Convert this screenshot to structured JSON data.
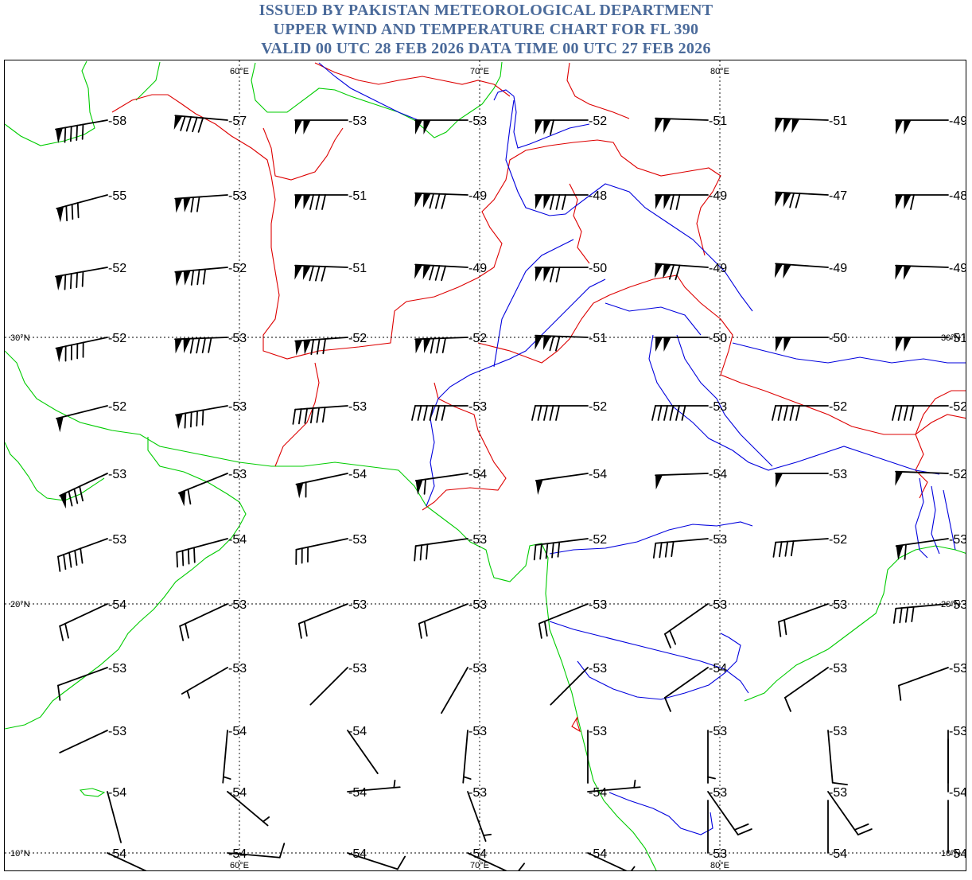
{
  "header": {
    "line1": "ISSUED BY PAKISTAN METEOROLOGICAL DEPARTMENT",
    "line2": "UPPER WIND AND TEMPERATURE CHART FOR FL 390",
    "line3": "VALID 00 UTC 28 FEB 2026 DATA TIME 00 UTC 27 FEB 2026"
  },
  "colors": {
    "title": "#4a6a9a",
    "coast": "#00cc00",
    "border": "#dd0000",
    "river": "#0000dd",
    "barb": "#000000",
    "grid": "#000000"
  },
  "grid": {
    "lon_labels": [
      "60°E",
      "70°E",
      "80°E"
    ],
    "lat_labels": [
      "30°N",
      "20°N",
      "10°N"
    ]
  },
  "stations": [
    {
      "temp": "-58",
      "barb": [
        1,
        0,
        4,
        0
      ],
      "dir": 260
    },
    {
      "temp": "-57",
      "barb": [
        1,
        0,
        4,
        0
      ],
      "dir": 275
    },
    {
      "temp": "-53",
      "barb": [
        2,
        0,
        0,
        0
      ],
      "dir": 270
    },
    {
      "temp": "-53",
      "barb": [
        2,
        0,
        0,
        0
      ],
      "dir": 270
    },
    {
      "temp": "-52",
      "barb": [
        2,
        0,
        1,
        0
      ],
      "dir": 270
    },
    {
      "temp": "-51",
      "barb": [
        2,
        0,
        0,
        0
      ],
      "dir": 272
    },
    {
      "temp": "-51",
      "barb": [
        3,
        0,
        0,
        0
      ],
      "dir": 272
    },
    {
      "temp": "-49",
      "barb": [
        2,
        0,
        0,
        0
      ],
      "dir": 270
    },
    {
      "temp": "-55",
      "barb": [
        1,
        0,
        3,
        0
      ],
      "dir": 255
    },
    {
      "temp": "-53",
      "barb": [
        2,
        0,
        2,
        0
      ],
      "dir": 266
    },
    {
      "temp": "-51",
      "barb": [
        2,
        0,
        3,
        0
      ],
      "dir": 270
    },
    {
      "temp": "-49",
      "barb": [
        2,
        0,
        3,
        0
      ],
      "dir": 272
    },
    {
      "temp": "-48",
      "barb": [
        2,
        0,
        3,
        0
      ],
      "dir": 270
    },
    {
      "temp": "-49",
      "barb": [
        2,
        0,
        2,
        0
      ],
      "dir": 270
    },
    {
      "temp": "-47",
      "barb": [
        2,
        0,
        2,
        0
      ],
      "dir": 273
    },
    {
      "temp": "-48",
      "barb": [
        2,
        0,
        1,
        0
      ],
      "dir": 270
    },
    {
      "temp": "-52",
      "barb": [
        1,
        0,
        4,
        0
      ],
      "dir": 260
    },
    {
      "temp": "-52",
      "barb": [
        2,
        0,
        3,
        0
      ],
      "dir": 265
    },
    {
      "temp": "-51",
      "barb": [
        2,
        0,
        3,
        0
      ],
      "dir": 272
    },
    {
      "temp": "-49",
      "barb": [
        2,
        0,
        3,
        0
      ],
      "dir": 273
    },
    {
      "temp": "-50",
      "barb": [
        2,
        0,
        2,
        0
      ],
      "dir": 270
    },
    {
      "temp": "-49",
      "barb": [
        2,
        0,
        2,
        0
      ],
      "dir": 274
    },
    {
      "temp": "-49",
      "barb": [
        2,
        0,
        0,
        0
      ],
      "dir": 274
    },
    {
      "temp": "-49",
      "barb": [
        2,
        0,
        0,
        0
      ],
      "dir": 272
    },
    {
      "temp": "-52",
      "barb": [
        1,
        0,
        4,
        0
      ],
      "dir": 258
    },
    {
      "temp": "-53",
      "barb": [
        2,
        0,
        4,
        0
      ],
      "dir": 268
    },
    {
      "temp": "-52",
      "barb": [
        2,
        0,
        3,
        0
      ],
      "dir": 266
    },
    {
      "temp": "-52",
      "barb": [
        2,
        0,
        3,
        0
      ],
      "dir": 268
    },
    {
      "temp": "-51",
      "barb": [
        2,
        0,
        2,
        0
      ],
      "dir": 272
    },
    {
      "temp": "-50",
      "barb": [
        2,
        0,
        0,
        0
      ],
      "dir": 270
    },
    {
      "temp": "-50",
      "barb": [
        2,
        0,
        0,
        0
      ],
      "dir": 270
    },
    {
      "temp": "-51",
      "barb": [
        2,
        0,
        0,
        0
      ],
      "dir": 270
    },
    {
      "temp": "-52",
      "barb": [
        1,
        0,
        0,
        0
      ],
      "dir": 256
    },
    {
      "temp": "-53",
      "barb": [
        1,
        0,
        4,
        0
      ],
      "dir": 260
    },
    {
      "temp": "-53",
      "barb": [
        0,
        0,
        6,
        0
      ],
      "dir": 266
    },
    {
      "temp": "-53",
      "barb": [
        0,
        0,
        6,
        0
      ],
      "dir": 270
    },
    {
      "temp": "-52",
      "barb": [
        0,
        0,
        5,
        0
      ],
      "dir": 270
    },
    {
      "temp": "-53",
      "barb": [
        0,
        0,
        6,
        0
      ],
      "dir": 270
    },
    {
      "temp": "-52",
      "barb": [
        0,
        0,
        5,
        0
      ],
      "dir": 270
    },
    {
      "temp": "-52",
      "barb": [
        0,
        0,
        4,
        0
      ],
      "dir": 270
    },
    {
      "temp": "-53",
      "barb": [
        1,
        0,
        3,
        0
      ],
      "dir": 245
    },
    {
      "temp": "-53",
      "barb": [
        1,
        0,
        1,
        0
      ],
      "dir": 248
    },
    {
      "temp": "-54",
      "barb": [
        1,
        0,
        1,
        0
      ],
      "dir": 258
    },
    {
      "temp": "-54",
      "barb": [
        1,
        0,
        1,
        0
      ],
      "dir": 262
    },
    {
      "temp": "-54",
      "barb": [
        1,
        0,
        0,
        0
      ],
      "dir": 262
    },
    {
      "temp": "-54",
      "barb": [
        1,
        0,
        0,
        0
      ],
      "dir": 268
    },
    {
      "temp": "-53",
      "barb": [
        1,
        0,
        0,
        0
      ],
      "dir": 270
    },
    {
      "temp": "-52",
      "barb": [
        1,
        0,
        0,
        0
      ],
      "dir": 272
    },
    {
      "temp": "-53",
      "barb": [
        0,
        0,
        5,
        0
      ],
      "dir": 250
    },
    {
      "temp": "-54",
      "barb": [
        0,
        0,
        4,
        0
      ],
      "dir": 255
    },
    {
      "temp": "-53",
      "barb": [
        0,
        0,
        3,
        0
      ],
      "dir": 258
    },
    {
      "temp": "-53",
      "barb": [
        0,
        0,
        3,
        0
      ],
      "dir": 262
    },
    {
      "temp": "-52",
      "barb": [
        0,
        0,
        5,
        0
      ],
      "dir": 263
    },
    {
      "temp": "-53",
      "barb": [
        0,
        0,
        4,
        0
      ],
      "dir": 265
    },
    {
      "temp": "-52",
      "barb": [
        0,
        0,
        4,
        0
      ],
      "dir": 266
    },
    {
      "temp": "-53",
      "barb": [
        1,
        0,
        1,
        0
      ],
      "dir": 262
    },
    {
      "temp": "-54",
      "barb": [
        0,
        0,
        2,
        0
      ],
      "dir": 245
    },
    {
      "temp": "-53",
      "barb": [
        0,
        0,
        2,
        0
      ],
      "dir": 245
    },
    {
      "temp": "-53",
      "barb": [
        0,
        0,
        2,
        0
      ],
      "dir": 248
    },
    {
      "temp": "-53",
      "barb": [
        0,
        0,
        2,
        0
      ],
      "dir": 248
    },
    {
      "temp": "-53",
      "barb": [
        0,
        0,
        2,
        0
      ],
      "dir": 248
    },
    {
      "temp": "-53",
      "barb": [
        0,
        0,
        2,
        0
      ],
      "dir": 235
    },
    {
      "temp": "-53",
      "barb": [
        0,
        0,
        2,
        0
      ],
      "dir": 250
    },
    {
      "temp": "-53",
      "barb": [
        0,
        0,
        4,
        0
      ],
      "dir": 265
    },
    {
      "temp": "-53",
      "barb": [
        0,
        0,
        1,
        0
      ],
      "dir": 250
    },
    {
      "temp": "-53",
      "barb": [
        0,
        0,
        0,
        1
      ],
      "dir": 240
    },
    {
      "temp": "-53",
      "barb": [
        0,
        0,
        0,
        0
      ],
      "dir": 225
    },
    {
      "temp": "-53",
      "barb": [
        0,
        0,
        0,
        0
      ],
      "dir": 210
    },
    {
      "temp": "-53",
      "barb": [
        0,
        0,
        0,
        0
      ],
      "dir": 225
    },
    {
      "temp": "-54",
      "barb": [
        0,
        0,
        1,
        0
      ],
      "dir": 235
    },
    {
      "temp": "-53",
      "barb": [
        0,
        0,
        1,
        0
      ],
      "dir": 235
    },
    {
      "temp": "-53",
      "barb": [
        0,
        0,
        1,
        0
      ],
      "dir": 250
    },
    {
      "temp": "-53",
      "barb": [
        0,
        0,
        0,
        0
      ],
      "dir": 245
    },
    {
      "temp": "-54",
      "barb": [
        0,
        0,
        0,
        1
      ],
      "dir": 185
    },
    {
      "temp": "-54",
      "barb": [
        0,
        0,
        0,
        0
      ],
      "dir": 145
    },
    {
      "temp": "-53",
      "barb": [
        0,
        0,
        0,
        1
      ],
      "dir": 185
    },
    {
      "temp": "-53",
      "barb": [
        0,
        0,
        0,
        0
      ],
      "dir": 180
    },
    {
      "temp": "-53",
      "barb": [
        0,
        0,
        0,
        1
      ],
      "dir": 180
    },
    {
      "temp": "-53",
      "barb": [
        0,
        0,
        1,
        0
      ],
      "dir": 175
    },
    {
      "temp": "-53",
      "barb": [
        0,
        0,
        0,
        0
      ],
      "dir": 180
    },
    {
      "temp": "-54",
      "barb": [
        0,
        0,
        0,
        0
      ],
      "dir": 165
    },
    {
      "temp": "-54",
      "barb": [
        0,
        0,
        0,
        1
      ],
      "dir": 130
    },
    {
      "temp": "-54",
      "barb": [
        0,
        0,
        0,
        1
      ],
      "dir": 85
    },
    {
      "temp": "-53",
      "barb": [
        0,
        0,
        0,
        1
      ],
      "dir": 160
    },
    {
      "temp": "-54",
      "barb": [
        0,
        0,
        0,
        1
      ],
      "dir": 85
    },
    {
      "temp": "-53",
      "barb": [
        0,
        0,
        2,
        0
      ],
      "dir": 145
    },
    {
      "temp": "-53",
      "barb": [
        0,
        0,
        2,
        0
      ],
      "dir": 145
    },
    {
      "temp": "-54",
      "barb": [
        0,
        0,
        0,
        0
      ],
      "dir": 0
    },
    {
      "temp": "-54",
      "barb": [
        0,
        0,
        0,
        0
      ],
      "dir": 115
    },
    {
      "temp": "-54",
      "barb": [
        0,
        0,
        1,
        0
      ],
      "dir": 95
    },
    {
      "temp": "-54",
      "barb": [
        0,
        0,
        1,
        0
      ],
      "dir": 108
    },
    {
      "temp": "-54",
      "barb": [
        0,
        0,
        1,
        0
      ],
      "dir": 115
    },
    {
      "temp": "-54",
      "barb": [
        0,
        0,
        0,
        1
      ],
      "dir": 115
    },
    {
      "temp": "-53",
      "barb": [
        0,
        0,
        0,
        0
      ],
      "dir": 0
    },
    {
      "temp": "-54",
      "barb": [
        0,
        0,
        0,
        0
      ],
      "dir": 0
    },
    {
      "temp": "-54",
      "barb": [
        0,
        0,
        0,
        0
      ],
      "dir": 0
    }
  ]
}
